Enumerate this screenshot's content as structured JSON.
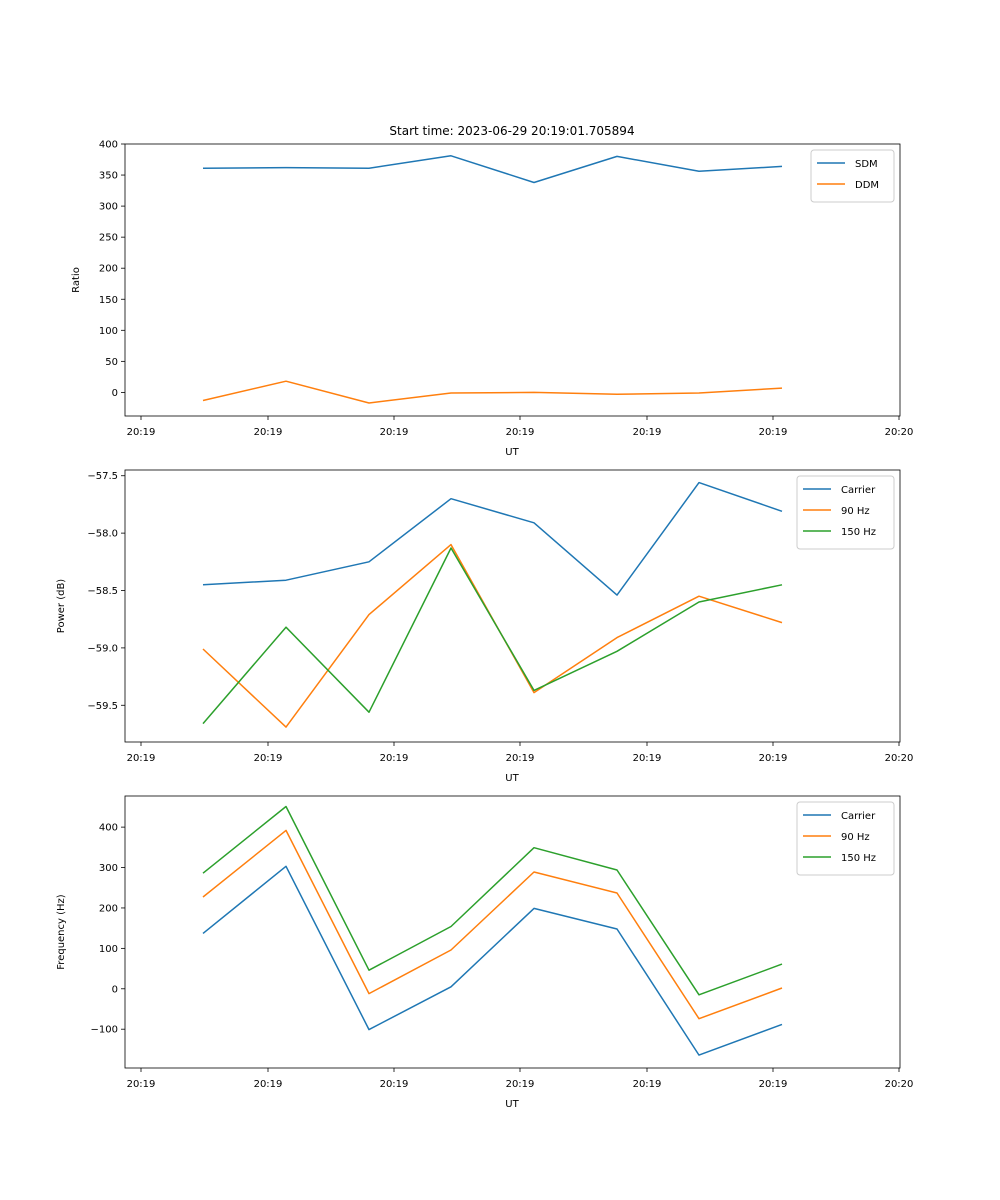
{
  "figure_title": "Start time: 2023-06-29 20:19:01.705894",
  "chart_data": [
    {
      "type": "line",
      "xlabel": "UT",
      "ylabel": "Ratio",
      "xticks": [
        "20:19",
        "20:19",
        "20:19",
        "20:19",
        "20:19",
        "20:19",
        "20:20"
      ],
      "ylim": [
        -38,
        400
      ],
      "yticks": [
        0,
        50,
        100,
        150,
        200,
        250,
        300,
        350,
        400
      ],
      "ytick_labels": [
        "0",
        "50",
        "100",
        "150",
        "200",
        "250",
        "300",
        "350",
        "400"
      ],
      "legend_position": "top-right",
      "series": [
        {
          "name": "SDM",
          "color": "#1f77b4",
          "values": [
            361,
            362,
            361,
            381,
            338,
            380,
            356,
            364
          ]
        },
        {
          "name": "DDM",
          "color": "#ff7f0e",
          "values": [
            -13,
            18,
            -17,
            -1,
            0,
            -3,
            -1,
            7
          ]
        }
      ]
    },
    {
      "type": "line",
      "xlabel": "UT",
      "ylabel": "Power (dB)",
      "xticks": [
        "20:19",
        "20:19",
        "20:19",
        "20:19",
        "20:19",
        "20:19",
        "20:20"
      ],
      "ylim": [
        -59.82,
        -57.45
      ],
      "yticks": [
        -59.5,
        -59.0,
        -58.5,
        -58.0,
        -57.5
      ],
      "ytick_labels": [
        "−59.5",
        "−59.0",
        "−58.5",
        "−58.0",
        "−57.5"
      ],
      "legend_position": "top-right",
      "series": [
        {
          "name": "Carrier",
          "color": "#1f77b4",
          "values": [
            -58.45,
            -58.41,
            -58.25,
            -57.7,
            -57.91,
            -58.54,
            -57.56,
            -57.81
          ]
        },
        {
          "name": "90 Hz",
          "color": "#ff7f0e",
          "values": [
            -59.01,
            -59.69,
            -58.71,
            -58.1,
            -59.39,
            -58.91,
            -58.55,
            -58.78
          ]
        },
        {
          "name": "150 Hz",
          "color": "#2ca02c",
          "values": [
            -59.66,
            -58.82,
            -59.56,
            -58.13,
            -59.37,
            -59.03,
            -58.6,
            -58.45
          ]
        }
      ]
    },
    {
      "type": "line",
      "xlabel": "UT",
      "ylabel": "Frequency (Hz)",
      "xticks": [
        "20:19",
        "20:19",
        "20:19",
        "20:19",
        "20:19",
        "20:19",
        "20:20"
      ],
      "ylim": [
        -196,
        477
      ],
      "yticks": [
        -100,
        0,
        100,
        200,
        300,
        400
      ],
      "ytick_labels": [
        "−100",
        "0",
        "100",
        "200",
        "300",
        "400"
      ],
      "legend_position": "top-right",
      "series": [
        {
          "name": "Carrier",
          "color": "#1f77b4",
          "values": [
            137,
            303,
            -101,
            5,
            199,
            148,
            -164,
            -88
          ]
        },
        {
          "name": "90 Hz",
          "color": "#ff7f0e",
          "values": [
            227,
            392,
            -12,
            96,
            289,
            237,
            -74,
            2
          ]
        },
        {
          "name": "150 Hz",
          "color": "#2ca02c",
          "values": [
            286,
            451,
            46,
            154,
            349,
            294,
            -15,
            61
          ]
        }
      ]
    }
  ]
}
